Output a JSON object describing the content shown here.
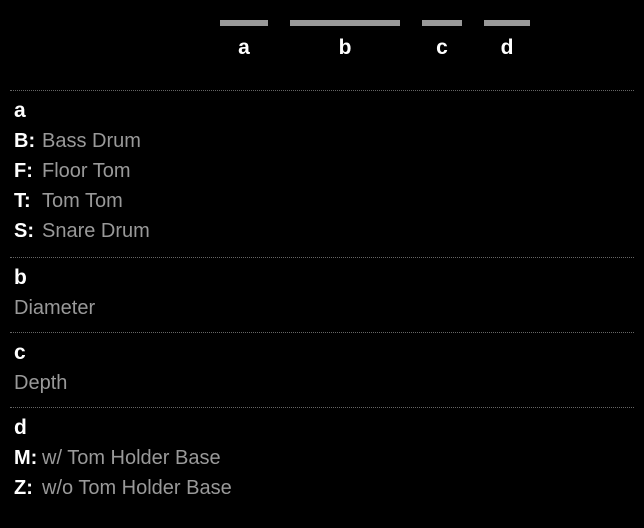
{
  "header": {
    "segments": [
      {
        "label": "a",
        "bar_class": "bar-a"
      },
      {
        "label": "b",
        "bar_class": "bar-b"
      },
      {
        "label": "c",
        "bar_class": "bar-c"
      },
      {
        "label": "d",
        "bar_class": "bar-d"
      }
    ],
    "bar_color": "#999999"
  },
  "sections": {
    "a": {
      "title": "a",
      "defs": [
        {
          "key": "B:",
          "val": "Bass Drum"
        },
        {
          "key": "F:",
          "val": "Floor Tom"
        },
        {
          "key": "T:",
          "val": "Tom Tom"
        },
        {
          "key": "S:",
          "val": "Snare Drum"
        }
      ]
    },
    "b": {
      "title": "b",
      "value": "Diameter"
    },
    "c": {
      "title": "c",
      "value": "Depth"
    },
    "d": {
      "title": "d",
      "defs": [
        {
          "key": "M:",
          "val": "w/ Tom Holder Base"
        },
        {
          "key": "Z:",
          "val": "w/o Tom Holder Base"
        }
      ]
    }
  },
  "colors": {
    "background": "#000000",
    "label_white": "#ffffff",
    "text_gray": "#999999",
    "divider": "#666666"
  },
  "typography": {
    "title_fontsize": 21,
    "body_fontsize": 20,
    "font_family": "Arial"
  }
}
